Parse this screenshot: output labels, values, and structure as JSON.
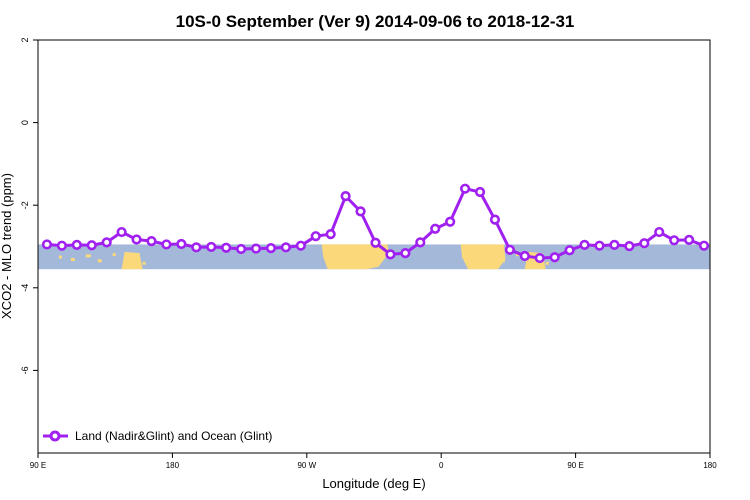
{
  "chart_data": {
    "type": "line",
    "title": "10S-0 September (Ver 9)   2014-09-06 to 2018-12-31",
    "xlabel": "Longitude (deg E)",
    "ylabel": "XCO2 - MLO trend (ppm)",
    "xlim": [
      90,
      540
    ],
    "ylim": [
      -8,
      2
    ],
    "x_ticks": [
      {
        "value": 90,
        "label": "90 E"
      },
      {
        "value": 180,
        "label": "180"
      },
      {
        "value": 270,
        "label": "90 W"
      },
      {
        "value": 360,
        "label": "0"
      },
      {
        "value": 450,
        "label": "90 E"
      },
      {
        "value": 540,
        "label": "180"
      }
    ],
    "y_ticks": [
      {
        "value": 2,
        "label": "2"
      },
      {
        "value": 0,
        "label": "0"
      },
      {
        "value": -2,
        "label": "-2"
      },
      {
        "value": -4,
        "label": "-4"
      },
      {
        "value": -6,
        "label": "-6"
      }
    ],
    "series": [
      {
        "name": "Land (Nadir&Glint) and Ocean (Glint)",
        "color": "#a020f0",
        "x": [
          96,
          106,
          116,
          126,
          136,
          146,
          156,
          166,
          176,
          186,
          196,
          206,
          216,
          226,
          236,
          246,
          256,
          266,
          276,
          286,
          296,
          306,
          316,
          326,
          336,
          346,
          356,
          366,
          376,
          386,
          396,
          406,
          416,
          426,
          436,
          446,
          456,
          466,
          476,
          486,
          496,
          506,
          516,
          526,
          536
        ],
        "y": [
          -2.95,
          -2.98,
          -2.96,
          -2.97,
          -2.9,
          -2.65,
          -2.83,
          -2.87,
          -2.95,
          -2.94,
          -3.02,
          -3.01,
          -3.03,
          -3.06,
          -3.05,
          -3.04,
          -3.02,
          -2.98,
          -2.75,
          -2.7,
          -1.78,
          -2.15,
          -2.91,
          -3.19,
          -3.16,
          -2.9,
          -2.57,
          -2.4,
          -1.6,
          -1.68,
          -2.35,
          -3.08,
          -3.23,
          -3.28,
          -3.26,
          -3.09,
          -2.96,
          -2.98,
          -2.96,
          -2.99,
          -2.92,
          -2.65,
          -2.85,
          -2.84,
          -2.98
        ]
      }
    ],
    "band": {
      "y_top": -2.95,
      "y_bottom": -3.55,
      "ocean_color": "#a4b9da",
      "land_color": "#fbd97b"
    },
    "legend_position": "bottom-left",
    "grid": false
  }
}
